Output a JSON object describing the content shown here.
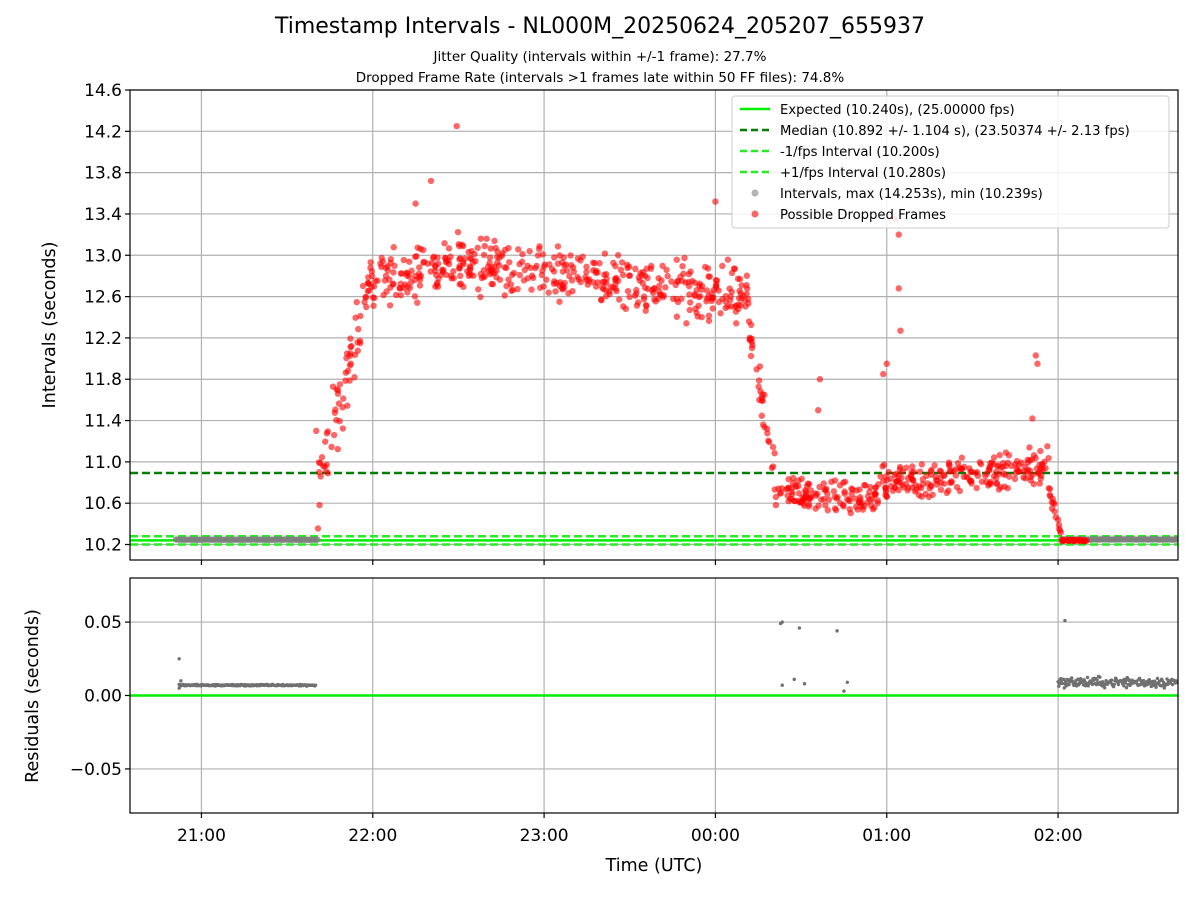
{
  "title": "Timestamp Intervals - NL000M_20250624_205207_655937",
  "subtitle_1": "Jitter Quality (intervals within +/-1 frame): 27.7%",
  "subtitle_2": "Dropped Frame Rate (intervals >1 frames late within 50 FF files): 74.8%",
  "colors": {
    "expected": "#00ee00",
    "median": "#007f00",
    "fps_bound": "#22ee22",
    "intervals": "#808080",
    "dropped": "#ff0000",
    "grid": "#b0b0b0"
  },
  "chart_data": [
    {
      "type": "scatter",
      "name": "top",
      "ylabel": "Intervals (seconds)",
      "xlabel": "",
      "ylim": [
        10.05,
        14.6
      ],
      "xlim_hours": [
        20.583,
        26.7
      ],
      "grid": true,
      "legend_placement": "top-right",
      "y_ticks": [
        "10.2",
        "10.6",
        "11.0",
        "11.4",
        "11.8",
        "12.2",
        "12.6",
        "13.0",
        "13.4",
        "13.8",
        "14.2",
        "14.6"
      ],
      "y_tick_values": [
        10.2,
        10.6,
        11.0,
        11.4,
        11.8,
        12.2,
        12.6,
        13.0,
        13.4,
        13.8,
        14.2,
        14.6
      ],
      "x_tick_values": [
        21,
        22,
        23,
        24,
        25,
        26
      ],
      "hlines": [
        {
          "label": "Expected (10.240s), (25.00000 fps)",
          "y": 10.24,
          "style": "solid",
          "color": "#00ee00"
        },
        {
          "label": "Median (10.892 +/- 1.104 s), (23.50374 +/- 2.13 fps)",
          "y": 10.892,
          "style": "dashed",
          "color": "#007f00"
        },
        {
          "label": "-1/fps Interval (10.200s)",
          "y": 10.2,
          "style": "dashed",
          "color": "#22ee22"
        },
        {
          "label": "+1/fps Interval (10.280s)",
          "y": 10.28,
          "style": "dashed",
          "color": "#22ee22"
        }
      ],
      "series": [
        {
          "name": "Intervals, max (14.253s), min (10.239s)",
          "color": "#808080",
          "segments": [
            {
              "x_start": 20.85,
              "x_end": 21.68,
              "y": 10.247
            },
            {
              "x_start": 26.02,
              "x_end": 26.7,
              "y": 10.249
            }
          ]
        },
        {
          "name": "Possible Dropped Frames",
          "color": "#ff0000",
          "phases": [
            {
              "x_start": 21.68,
              "x_end": 21.97,
              "y_start": 10.8,
              "y_end": 12.6,
              "spread": 0.5
            },
            {
              "x_start": 21.97,
              "x_end": 22.5,
              "y_start": 12.7,
              "y_end": 12.95,
              "spread": 0.35
            },
            {
              "x_start": 22.5,
              "x_end": 24.2,
              "y_start": 12.9,
              "y_end": 12.6,
              "spread": 0.4
            },
            {
              "x_start": 24.2,
              "x_end": 24.35,
              "y_start": 12.2,
              "y_end": 10.9,
              "spread": 0.35
            },
            {
              "x_start": 24.35,
              "x_end": 24.95,
              "y_start": 10.7,
              "y_end": 10.65,
              "spread": 0.22
            },
            {
              "x_start": 24.95,
              "x_end": 25.95,
              "y_start": 10.8,
              "y_end": 10.95,
              "spread": 0.25
            },
            {
              "x_start": 25.95,
              "x_end": 26.02,
              "y_start": 10.7,
              "y_end": 10.3,
              "spread": 0.1
            },
            {
              "x_start": 26.02,
              "x_end": 26.17,
              "y_start": 10.24,
              "y_end": 10.24,
              "spread": 0.015
            }
          ],
          "outliers": [
            [
              22.49,
              14.25
            ],
            [
              22.34,
              13.72
            ],
            [
              22.25,
              13.5
            ],
            [
              24.0,
              13.52
            ],
            [
              25.05,
              13.35
            ],
            [
              25.07,
              13.2
            ],
            [
              25.07,
              12.68
            ],
            [
              25.08,
              12.27
            ],
            [
              25.87,
              12.03
            ],
            [
              25.88,
              11.95
            ],
            [
              24.61,
              11.8
            ],
            [
              24.6,
              11.5
            ],
            [
              25.0,
              11.95
            ],
            [
              24.98,
              11.85
            ],
            [
              25.85,
              11.42
            ],
            [
              24.2,
              12.18
            ],
            [
              21.67,
              11.3
            ]
          ]
        }
      ]
    },
    {
      "type": "scatter",
      "name": "bottom",
      "xlabel": "Time (UTC)",
      "ylabel": "Residuals (seconds)",
      "ylim": [
        -0.08,
        0.08
      ],
      "y_ticks": [
        "0.05",
        "0.00",
        "−0.05"
      ],
      "y_tick_values": [
        0.05,
        0.0,
        -0.05
      ],
      "x_ticks": [
        "21:00",
        "22:00",
        "23:00",
        "00:00",
        "01:00",
        "02:00"
      ],
      "x_tick_values": [
        21,
        22,
        23,
        24,
        25,
        26
      ],
      "zero_line_color": "#00ee00",
      "series": [
        {
          "name": "Residuals",
          "color": "#707070",
          "segments": [
            {
              "x_start": 20.87,
              "x_end": 21.67,
              "y": 0.007,
              "spread": 0.0008
            },
            {
              "x_start": 26.0,
              "x_end": 26.7,
              "y": 0.009,
              "spread": 0.005
            }
          ],
          "points": [
            [
              20.87,
              0.025
            ],
            [
              20.87,
              0.005
            ],
            [
              20.88,
              0.01
            ],
            [
              24.38,
              0.049
            ],
            [
              24.39,
              0.05
            ],
            [
              24.49,
              0.046
            ],
            [
              24.71,
              0.044
            ],
            [
              24.39,
              0.007
            ],
            [
              24.46,
              0.011
            ],
            [
              24.52,
              0.008
            ],
            [
              24.75,
              0.003
            ],
            [
              24.77,
              0.009
            ],
            [
              26.04,
              0.051
            ]
          ]
        }
      ]
    }
  ]
}
